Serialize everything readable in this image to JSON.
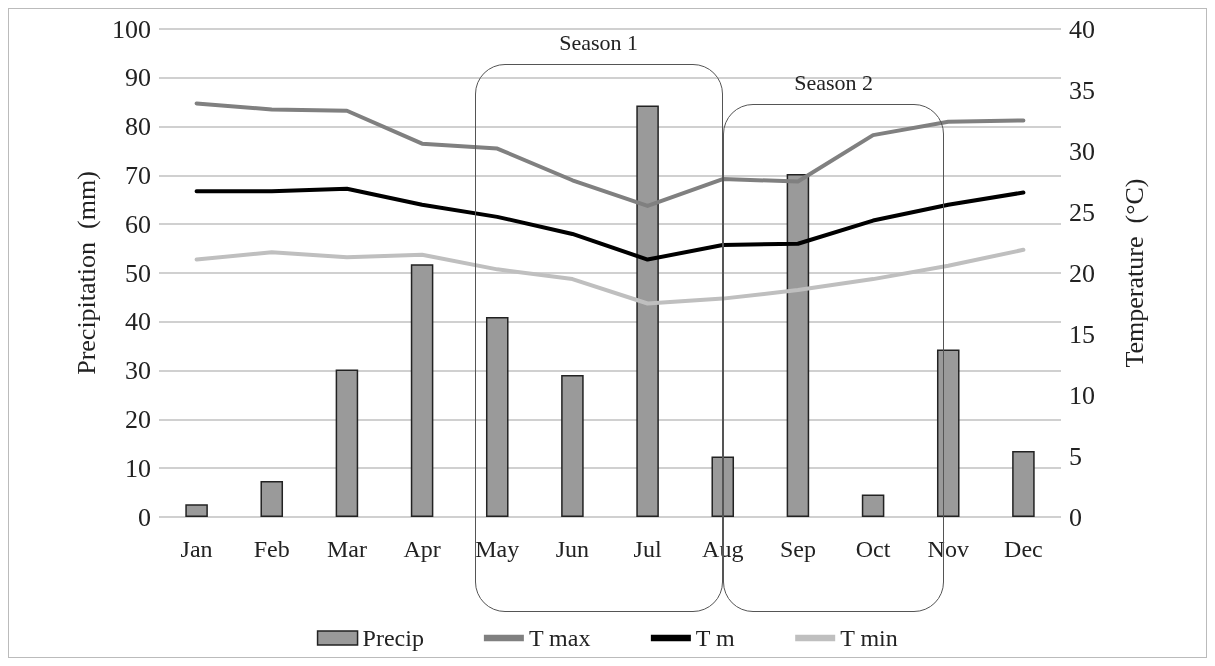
{
  "chart_data": {
    "type": "bar",
    "ylabel": "Precipitation  (mm)",
    "y2label": "Temperature  (°C)",
    "categories": [
      "Jan",
      "Feb",
      "Mar",
      "Apr",
      "May",
      "Jun",
      "Jul",
      "Aug",
      "Sep",
      "Oct",
      "Nov",
      "Dec"
    ],
    "series": [
      {
        "name": "Precip",
        "color": "#9a9a9a",
        "values": [
          2.6,
          7.4,
          30.2,
          51.8,
          41,
          29.1,
          84.3,
          12.4,
          70.3,
          4.6,
          34.3,
          13.5
        ]
      },
      {
        "name": "T max",
        "type": "line",
        "axis": "y2",
        "color": "#808080",
        "values": [
          33.9,
          33.4,
          33.3,
          30.6,
          30.2,
          27.6,
          25.5,
          27.7,
          27.5,
          31.3,
          32.4,
          32.5
        ]
      },
      {
        "name": "T m",
        "type": "line",
        "axis": "y2",
        "color": "#000000",
        "values": [
          26.7,
          26.7,
          26.9,
          25.6,
          24.6,
          23.2,
          21.1,
          22.3,
          22.4,
          24.3,
          25.6,
          26.6
        ]
      },
      {
        "name": "T min",
        "type": "line",
        "axis": "y2",
        "color": "#bfbfbf",
        "values": [
          21.1,
          21.7,
          21.3,
          21.5,
          20.3,
          19.5,
          17.5,
          17.9,
          18.6,
          19.5,
          20.6,
          21.9
        ]
      }
    ],
    "ylim": [
      0,
      100
    ],
    "yticks": [
      0,
      10,
      20,
      30,
      40,
      50,
      60,
      70,
      80,
      90,
      100
    ],
    "y2lim": [
      0,
      40
    ],
    "y2ticks": [
      0,
      5,
      10,
      15,
      20,
      25,
      30,
      35,
      40
    ],
    "grid": "y",
    "legend": "bottom",
    "marker": "none",
    "annotations": [
      "Season 1",
      "Season 2"
    ]
  }
}
